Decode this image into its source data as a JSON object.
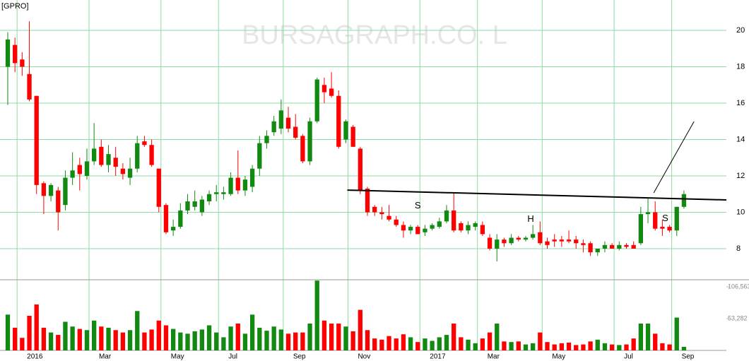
{
  "chart_data": [
    {
      "type": "candlestick",
      "title": "[GPRO]",
      "watermark": "BURSAGRAPH.CO. L",
      "categories": [
        null,
        "2016",
        null,
        null,
        null,
        null,
        null,
        null,
        null,
        null,
        null,
        "Mar",
        null,
        null,
        null,
        null,
        null,
        null,
        null,
        null,
        null,
        "May",
        null,
        null,
        null,
        null,
        null,
        null,
        null,
        "Jul",
        null,
        null,
        null,
        null,
        null,
        null,
        null,
        null,
        "Sep",
        null,
        null,
        null,
        null,
        null,
        null,
        null,
        null,
        "Nov",
        null,
        null,
        null,
        null,
        null,
        null,
        null,
        null,
        null,
        "2017",
        null,
        null,
        null,
        null,
        null,
        null,
        null,
        "Mar",
        null,
        null,
        null,
        null,
        null,
        null,
        null,
        null,
        "May",
        null,
        null,
        null,
        null,
        null,
        null,
        null,
        null,
        null,
        "Jul",
        null,
        null,
        null,
        null,
        null,
        null,
        null,
        "Sep",
        null,
        null
      ],
      "open": [
        18.0,
        19.2,
        18.4,
        17.6,
        16.4,
        11.6,
        10.9,
        11.2,
        10.4,
        11.9,
        12.6,
        12.0,
        12.8,
        13.6,
        12.6,
        13.0,
        12.4,
        11.9,
        12.4,
        13.9,
        13.7,
        12.4,
        10.4,
        9.0,
        9.2,
        10.1,
        10.3,
        10.0,
        10.6,
        11.0,
        11.0,
        11.0,
        11.9,
        11.2,
        11.4,
        12.4,
        13.8,
        14.4,
        14.6,
        15.2,
        14.7,
        14.2,
        12.8,
        15.0,
        17.0,
        16.8,
        16.4,
        14.0,
        14.7,
        13.5,
        11.3,
        10.3,
        10.0,
        9.8,
        9.6,
        9.3,
        9.0,
        9.2,
        8.9,
        9.1,
        9.2,
        9.5,
        10.1,
        9.4,
        9.0,
        9.2,
        9.3,
        8.6,
        8.0,
        8.5,
        8.3,
        8.6,
        8.5,
        8.6,
        8.9,
        8.4,
        8.5,
        8.5,
        8.5,
        8.5,
        8.3,
        8.3,
        7.8,
        8.0,
        8.2,
        8.0,
        8.2,
        8.2,
        8.3,
        9.9,
        10.0,
        9.2,
        9.2,
        9.0,
        10.3
      ],
      "high": [
        19.9,
        19.6,
        18.8,
        20.5,
        16.4,
        11.7,
        11.6,
        11.4,
        12.3,
        13.3,
        13.0,
        13.5,
        14.9,
        14.0,
        13.7,
        13.6,
        12.7,
        13.0,
        14.2,
        14.2,
        14.0,
        12.4,
        10.5,
        9.6,
        10.5,
        11.0,
        11.2,
        10.9,
        11.2,
        11.5,
        11.4,
        12.2,
        13.4,
        12.0,
        12.6,
        14.2,
        14.5,
        15.3,
        16.2,
        15.8,
        15.4,
        14.3,
        15.2,
        17.4,
        17.4,
        17.7,
        16.7,
        15.1,
        14.8,
        13.6,
        11.4,
        10.4,
        10.3,
        10.4,
        9.8,
        9.5,
        9.3,
        9.3,
        9.3,
        9.4,
        9.7,
        10.4,
        11.1,
        9.5,
        9.5,
        9.5,
        9.5,
        8.8,
        8.8,
        8.6,
        8.8,
        8.7,
        8.7,
        9.3,
        9.5,
        8.6,
        8.8,
        8.7,
        9.0,
        8.7,
        8.5,
        8.4,
        8.0,
        8.4,
        8.3,
        8.4,
        8.3,
        8.4,
        10.3,
        10.8,
        10.6,
        9.6,
        9.3,
        10.3,
        11.2
      ],
      "low": [
        15.9,
        17.7,
        17.5,
        16.1,
        11.0,
        9.9,
        10.6,
        9.0,
        10.1,
        11.5,
        11.2,
        11.8,
        12.6,
        12.5,
        12.2,
        12.0,
        11.8,
        11.5,
        12.2,
        13.6,
        12.5,
        10.0,
        8.8,
        8.7,
        9.1,
        9.9,
        10.1,
        9.8,
        10.4,
        10.6,
        10.7,
        10.9,
        11.0,
        10.9,
        11.1,
        12.0,
        13.5,
        14.2,
        14.3,
        14.4,
        14.0,
        12.7,
        12.6,
        14.9,
        16.0,
        16.3,
        13.5,
        13.8,
        13.6,
        11.0,
        9.8,
        9.8,
        9.6,
        9.5,
        9.2,
        8.6,
        8.8,
        8.8,
        8.7,
        9.0,
        9.1,
        9.4,
        8.9,
        8.9,
        8.8,
        9.0,
        8.7,
        7.9,
        7.3,
        8.1,
        8.2,
        8.4,
        8.4,
        8.5,
        8.2,
        8.0,
        8.1,
        8.1,
        8.3,
        8.0,
        7.8,
        7.6,
        7.6,
        7.8,
        8.0,
        7.9,
        8.0,
        8.0,
        8.2,
        9.4,
        9.0,
        8.7,
        8.9,
        8.7,
        10.2
      ],
      "close": [
        19.5,
        18.2,
        18.0,
        16.2,
        11.5,
        10.9,
        11.5,
        10.0,
        11.9,
        12.3,
        12.1,
        12.8,
        13.5,
        12.6,
        13.2,
        12.5,
        12.1,
        12.4,
        13.8,
        13.7,
        12.6,
        10.3,
        8.9,
        9.2,
        10.1,
        10.6,
        10.6,
        10.7,
        11.0,
        11.1,
        11.1,
        11.9,
        11.2,
        11.8,
        12.4,
        13.8,
        14.2,
        15.0,
        15.6,
        14.6,
        14.1,
        12.8,
        15.0,
        17.3,
        16.6,
        16.4,
        13.6,
        15.0,
        13.6,
        11.2,
        10.0,
        10.0,
        9.9,
        9.6,
        9.3,
        9.0,
        9.2,
        8.8,
        9.1,
        9.3,
        9.5,
        10.1,
        9.0,
        9.0,
        9.3,
        9.4,
        8.8,
        8.0,
        8.5,
        8.3,
        8.6,
        8.5,
        8.6,
        8.8,
        8.3,
        8.2,
        8.4,
        8.4,
        8.4,
        8.3,
        8.2,
        7.8,
        8.0,
        8.2,
        8.0,
        8.2,
        8.1,
        8.0,
        9.9,
        10.0,
        9.1,
        9.1,
        9.0,
        10.3,
        11.0
      ],
      "xlim": [
        -1.08,
        99.9
      ],
      "ylim": [
        6.33,
        21.67
      ],
      "yticks": [
        8,
        10,
        12,
        14,
        16,
        18,
        20
      ],
      "grid": true,
      "up_color": "#128a12",
      "down_color": "#ff0000",
      "grid_color": "#8fdca4",
      "annotations": [
        {
          "text": "S",
          "x": 57,
          "y": 10.35
        },
        {
          "text": "H",
          "x": 72.7,
          "y": 9.6
        },
        {
          "text": "S",
          "x": 91.4,
          "y": 9.65
        }
      ],
      "lines": [
        {
          "x": [
            47.2,
            99.9
          ],
          "y": [
            11.22,
            10.68
          ]
        },
        {
          "x": [
            89.8,
            95.4
          ],
          "y": [
            11.07,
            14.99
          ]
        }
      ]
    },
    {
      "type": "volume",
      "values": [
        60000,
        38000,
        21000,
        58000,
        77000,
        38000,
        30000,
        26000,
        48000,
        40000,
        36000,
        34000,
        50000,
        40000,
        38000,
        34000,
        30000,
        34000,
        66000,
        30000,
        35000,
        50000,
        42000,
        36000,
        30000,
        28000,
        32000,
        35000,
        42000,
        30000,
        22000,
        40000,
        45000,
        28000,
        60000,
        38000,
        33000,
        40000,
        35000,
        28000,
        30000,
        30000,
        45000,
        117000,
        50000,
        45000,
        45000,
        40000,
        32000,
        68000,
        34000,
        20000,
        18000,
        24000,
        20000,
        27000,
        22000,
        14000,
        20000,
        16000,
        22000,
        26000,
        45000,
        22000,
        18000,
        12000,
        20000,
        30000,
        45000,
        15000,
        14000,
        15000,
        10000,
        12000,
        30000,
        14000,
        10000,
        12000,
        13000,
        9000,
        10000,
        15000,
        18000,
        12000,
        10000,
        9000,
        10000,
        20000,
        45000,
        45000,
        28000,
        12000,
        10000,
        55000,
        6000
      ],
      "ylim": [
        0,
        117219
      ],
      "yticks": [
        {
          "value": 106563,
          "label": "106,563"
        },
        {
          "value": 53282,
          "label": "53,282"
        }
      ]
    }
  ]
}
